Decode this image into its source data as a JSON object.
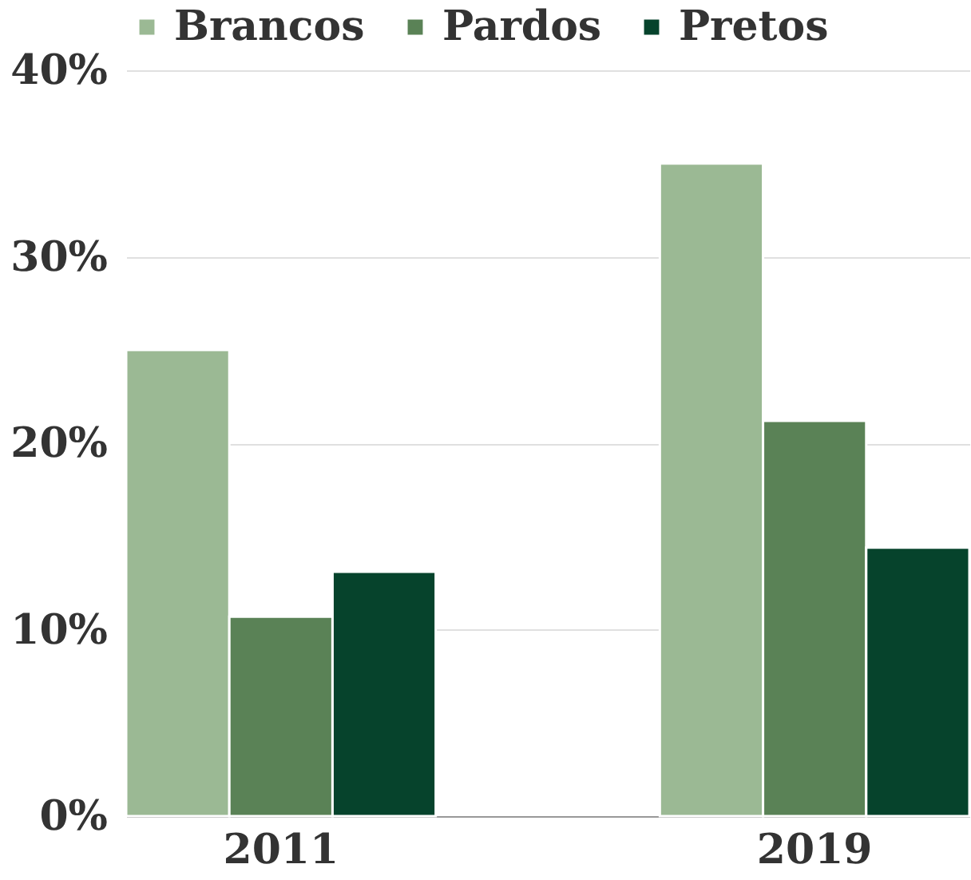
{
  "chart_data": {
    "type": "bar",
    "categories": [
      "2011",
      "2019"
    ],
    "series": [
      {
        "name": "Brancos",
        "color": "#9bb994",
        "values": [
          25,
          35
        ]
      },
      {
        "name": "Pardos",
        "color": "#5a8256",
        "values": [
          10.7,
          21.2
        ]
      },
      {
        "name": "Pretos",
        "color": "#06432c",
        "values": [
          13.1,
          14.4
        ]
      }
    ],
    "ylim": [
      0,
      40
    ],
    "yticks": [
      {
        "value": 0,
        "label": "0%"
      },
      {
        "value": 10,
        "label": "10%"
      },
      {
        "value": 20,
        "label": "20%"
      },
      {
        "value": 30,
        "label": "30%"
      },
      {
        "value": 40,
        "label": "40%"
      }
    ],
    "grid": "y",
    "legend": "top"
  }
}
